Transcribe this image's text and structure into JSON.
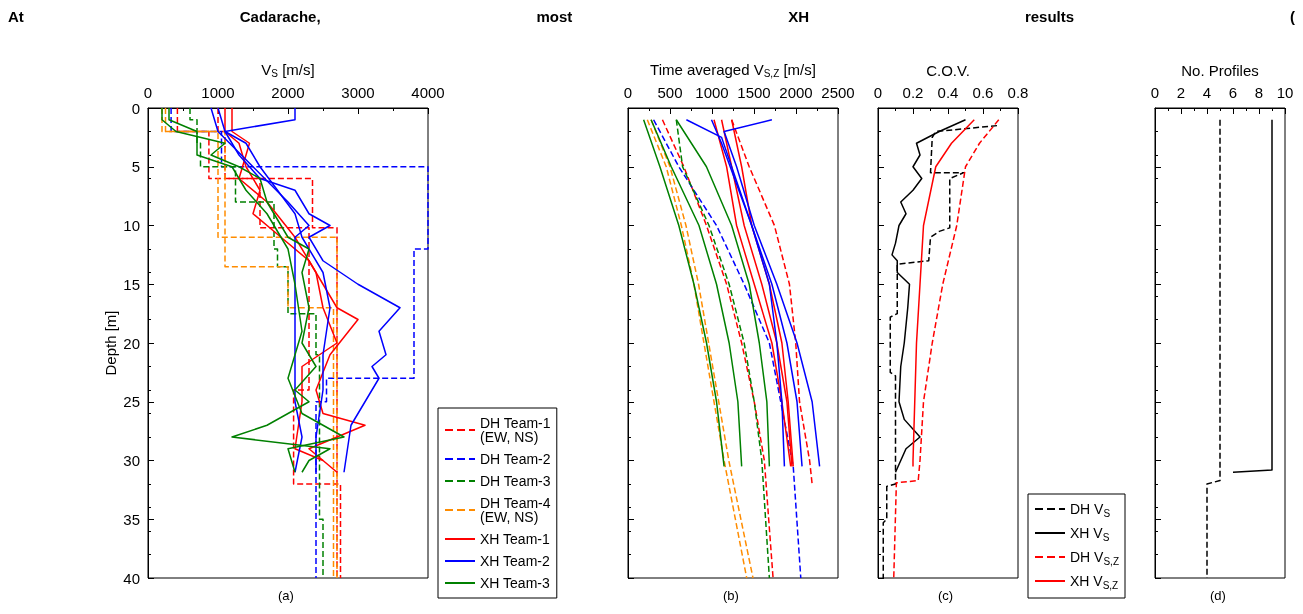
{
  "chart_data": [
    {
      "type": "line",
      "title": "At Cadarache, most XH results (",
      "xlabel": "V$_{S}$ [m/s]",
      "ylabel": "Depth [m]",
      "xlim": [
        0,
        4000
      ],
      "xticks": [
        0,
        1000,
        2000,
        3000,
        4000
      ],
      "ylim": [
        40,
        0
      ],
      "yticks": [
        0,
        5,
        10,
        15,
        20,
        25,
        30,
        35,
        40
      ],
      "legend": "bottom right",
      "annotations": [
        "(a)"
      ],
      "series": [
        {
          "name": "DH Team-1 (EW, NS)",
          "color": "#ff0000",
          "line_style": "dashed",
          "x": [
            420,
            420,
            870,
            870,
            2350,
            2350,
            2700,
            2700,
            2750,
            2750
          ],
          "values": [
            0,
            2,
            2,
            6,
            6,
            10.2,
            10.2,
            32,
            32,
            40
          ]
        },
        {
          "color": "#ff0000",
          "line_style": "dashed",
          "x": [
            1000,
            1000,
            1100,
            1100,
            1600,
            1600,
            2300,
            2300,
            2080,
            2080,
            2700,
            2700
          ],
          "values": [
            0,
            2,
            2,
            6,
            6,
            10.2,
            10.2,
            24,
            24,
            32,
            32,
            40
          ]
        },
        {
          "name": "DH Team-2",
          "color": "#0000ff",
          "line_style": "dashed",
          "x": [
            330,
            330,
            1050,
            1050,
            4000,
            4000,
            3800,
            3800,
            2550,
            2550,
            2400,
            2400
          ],
          "values": [
            0,
            2,
            2,
            5,
            5,
            12,
            12,
            23,
            23,
            25,
            25,
            40
          ]
        },
        {
          "name": "DH Team-3",
          "color": "#008000",
          "line_style": "dashed",
          "x": [
            600,
            600,
            700,
            700,
            750,
            750,
            1250,
            1250,
            1800,
            1800,
            1850,
            1850,
            2000,
            2000,
            2400,
            2400,
            2450,
            2450,
            2500,
            2500
          ],
          "values": [
            0,
            1,
            1,
            3,
            3,
            5,
            5,
            8,
            8,
            12,
            12,
            13.5,
            13.5,
            17.5,
            17.5,
            21,
            21,
            35,
            35,
            40
          ]
        },
        {
          "name": "DH Team-4 (EW, NS)",
          "color": "#ff8c00",
          "line_style": "dashed",
          "x": [
            200,
            200,
            1000,
            1000,
            2700,
            2700
          ],
          "values": [
            0,
            2,
            2,
            11,
            11,
            40
          ]
        },
        {
          "color": "#ff8c00",
          "line_style": "dashed",
          "x": [
            250,
            250,
            1100,
            1100,
            2000,
            2000,
            2650,
            2650
          ],
          "values": [
            0,
            2,
            2,
            13.5,
            13.5,
            17,
            17,
            40
          ]
        },
        {
          "name": "XH Team-1",
          "color": "#ff0000",
          "line_style": "solid",
          "x": [
            1100,
            1100,
            1300,
            1400,
            1600,
            1500,
            1900,
            2300,
            2600,
            2700,
            3000,
            2600,
            2400,
            2500,
            3100,
            2300,
            2700
          ],
          "values": [
            0,
            2,
            3,
            5,
            7,
            9,
            11,
            13,
            16,
            17,
            18,
            21,
            24,
            26,
            27,
            29,
            31
          ]
        },
        {
          "color": "#ff0000",
          "line_style": "solid",
          "x": [
            1200,
            1200,
            1450,
            1300,
            1700,
            2100,
            2400,
            2500,
            2700,
            2200,
            2200,
            2100,
            2500
          ],
          "values": [
            0,
            2,
            3,
            6,
            8,
            11,
            14,
            17,
            20,
            22,
            25,
            29,
            30
          ]
        },
        {
          "name": "XH Team-2",
          "color": "#0000ff",
          "line_style": "solid",
          "x": [
            2100,
            2100,
            1100,
            1300,
            1600,
            2100,
            2300,
            2600,
            2300,
            2500,
            3000,
            3600,
            3300,
            3400,
            3200,
            3300,
            2900,
            2800
          ],
          "values": [
            0,
            1,
            2,
            4,
            6,
            7,
            9,
            10,
            11,
            13,
            15,
            17,
            19,
            21,
            22,
            23,
            27,
            31
          ]
        },
        {
          "color": "#0000ff",
          "line_style": "solid",
          "x": [
            900,
            1000,
            1500,
            2000,
            2300,
            2100,
            2100,
            2100,
            2100,
            2200,
            2100
          ],
          "values": [
            0,
            2,
            5,
            8,
            10,
            11,
            15,
            20,
            25,
            28,
            31
          ]
        },
        {
          "color": "#0000ff",
          "line_style": "solid",
          "x": [
            1000,
            1100,
            1400,
            1600,
            2100,
            2200,
            2500,
            2600,
            2500,
            2500,
            2400,
            2400
          ],
          "values": [
            0,
            2,
            3,
            5,
            9,
            11,
            14,
            17,
            21,
            24,
            28,
            31
          ]
        },
        {
          "name": "XH Team-3",
          "color": "#008000",
          "line_style": "solid",
          "x": [
            200,
            200,
            400,
            1100,
            900,
            1300,
            1600,
            1700,
            2000,
            2300,
            2200,
            2300,
            2200,
            2400,
            2100,
            2300,
            1700,
            1200,
            2600,
            2300,
            2200
          ],
          "values": [
            0,
            1,
            2,
            3,
            4,
            5,
            6,
            8,
            11,
            12,
            14,
            17,
            20,
            22,
            24,
            25,
            27,
            28,
            29,
            30,
            31
          ]
        },
        {
          "color": "#008000",
          "line_style": "solid",
          "x": [
            300,
            300,
            700,
            700,
            1200,
            1400,
            1700,
            2000,
            2100,
            2200,
            2000,
            2200,
            2800,
            2000,
            2100
          ],
          "values": [
            0,
            1,
            2,
            4,
            5,
            7,
            9,
            12,
            15,
            19,
            23,
            26,
            28,
            29,
            31
          ]
        }
      ]
    },
    {
      "type": "line",
      "xlabel": "Time averaged V$_{S,Z}$ [m/s]",
      "xlim": [
        0,
        2500
      ],
      "xticks": [
        0,
        500,
        1000,
        1500,
        2000,
        2500
      ],
      "ylim": [
        40,
        0
      ],
      "yticks": [
        0,
        5,
        10,
        15,
        20,
        25,
        30,
        35,
        40
      ],
      "tick_labels": "x",
      "annotations": [
        "(b)"
      ],
      "series": [
        {
          "color": "#ff0000",
          "line_style": "dashed",
          "x": [
            410,
            665,
            934,
            1174,
            1353,
            1503,
            1623,
            1727
          ],
          "values": [
            1,
            5,
            10,
            15,
            20,
            25,
            30,
            40
          ]
        },
        {
          "color": "#ff0000",
          "line_style": "dashed",
          "x": [
            1234,
            1443,
            1743,
            1922,
            1997,
            2042,
            2162,
            2192
          ],
          "values": [
            1,
            5,
            10,
            15,
            20,
            25,
            30,
            32
          ]
        },
        {
          "color": "#0000ff",
          "line_style": "dashed",
          "x": [
            305,
            605,
            1054,
            1383,
            1683,
            1967,
            2057
          ],
          "values": [
            1,
            5,
            10,
            15,
            20,
            30.5,
            40
          ]
        },
        {
          "color": "#008000",
          "line_style": "dashed",
          "x": [
            575,
            650,
            964,
            1204,
            1383,
            1503,
            1593,
            1683
          ],
          "values": [
            1,
            5,
            10,
            15,
            20,
            25,
            30,
            40
          ]
        },
        {
          "color": "#ff8c00",
          "line_style": "dashed",
          "x": [
            230,
            455,
            635,
            785,
            904,
            1024,
            1144,
            1413
          ],
          "values": [
            1,
            5,
            10,
            15,
            20,
            25,
            30,
            40
          ]
        },
        {
          "color": "#ff8c00",
          "line_style": "dashed",
          "x": [
            275,
            500,
            690,
            840,
            960,
            1080,
            1200,
            1488
          ],
          "values": [
            1,
            5,
            10,
            15,
            20,
            25,
            30,
            40
          ]
        },
        {
          "color": "#ff0000",
          "line_style": "solid",
          "x": [
            1024,
            1174,
            1293,
            1503,
            1713,
            1832,
            1937
          ],
          "values": [
            1,
            5,
            10,
            15,
            20,
            25,
            30.5
          ]
        },
        {
          "color": "#ff0000",
          "line_style": "solid",
          "x": [
            1114,
            1234,
            1383,
            1593,
            1772,
            1892,
            1952
          ],
          "values": [
            1,
            5,
            10,
            15,
            20,
            25,
            30.5
          ]
        },
        {
          "color": "#ff0000",
          "line_style": "solid",
          "x": [
            1234,
            1353,
            1473,
            1683,
            1832,
            1907,
            1967
          ],
          "values": [
            1,
            5,
            10,
            15,
            20,
            25,
            30.5
          ]
        },
        {
          "color": "#0000ff",
          "line_style": "solid",
          "x": [
            695,
            1114,
            1234,
            1473,
            1713,
            1892,
            2012,
            2072
          ],
          "values": [
            1,
            2.5,
            5,
            10,
            15,
            20,
            25,
            30.5
          ]
        },
        {
          "color": "#0000ff",
          "line_style": "solid",
          "x": [
            1713,
            1144,
            1293,
            1503,
            1772,
            2012,
            2192,
            2281
          ],
          "values": [
            1,
            2,
            5,
            10,
            15,
            20,
            25,
            30.5
          ]
        },
        {
          "color": "#0000ff",
          "line_style": "solid",
          "x": [
            994,
            1114,
            1473,
            1683,
            1772,
            1832,
            1862
          ],
          "values": [
            1,
            3,
            10,
            15,
            20,
            25,
            30.5
          ]
        },
        {
          "color": "#008000",
          "line_style": "solid",
          "x": [
            186,
            380,
            605,
            785,
            935,
            1054,
            1144
          ],
          "values": [
            1,
            5,
            10,
            15,
            20,
            25,
            30.5
          ]
        },
        {
          "color": "#008000",
          "line_style": "solid",
          "x": [
            275,
            515,
            845,
            1054,
            1204,
            1308,
            1353
          ],
          "values": [
            1,
            5,
            10,
            15,
            20,
            25,
            30.5
          ]
        },
        {
          "color": "#008000",
          "line_style": "solid",
          "x": [
            575,
            934,
            1234,
            1443,
            1563,
            1653,
            1683
          ],
          "values": [
            1,
            5,
            10,
            15,
            20,
            25,
            30.5
          ]
        }
      ]
    },
    {
      "type": "line",
      "xlabel": "C.O.V.",
      "xlim": [
        0,
        0.8
      ],
      "xticks": [
        0,
        0.2,
        0.4,
        0.6,
        0.8
      ],
      "ylim": [
        40,
        0
      ],
      "yticks": [
        0,
        5,
        10,
        15,
        20,
        25,
        30,
        35,
        40
      ],
      "tick_labels": "x",
      "legend": "bottom right",
      "annotations": [
        "(c)"
      ],
      "series": [
        {
          "name": "DH V$_{S}$",
          "color": "#000000",
          "line_style": "dashed",
          "x": [
            0.68,
            0.33,
            0.31,
            0.3,
            0.49,
            0.41,
            0.41,
            0.35,
            0.3,
            0.29,
            0.11,
            0.11,
            0.07,
            0.07,
            0.1,
            0.1,
            0.05,
            0.05,
            0.03,
            0.03
          ],
          "values": [
            1.5,
            2,
            2.5,
            5.5,
            5.5,
            6,
            10.2,
            10.5,
            11,
            13,
            13.3,
            17.5,
            17.8,
            22.5,
            22.8,
            32,
            32.2,
            35,
            35.3,
            40
          ]
        },
        {
          "name": "XH V$_{S}$",
          "color": "#000000",
          "line_style": "solid",
          "x": [
            0.5,
            0.35,
            0.22,
            0.24,
            0.2,
            0.25,
            0.2,
            0.13,
            0.16,
            0.12,
            0.1,
            0.08,
            0.11,
            0.11,
            0.18,
            0.17,
            0.15,
            0.13,
            0.12,
            0.15,
            0.24,
            0.16,
            0.1
          ],
          "values": [
            1,
            2,
            3,
            4,
            5,
            6,
            7,
            8,
            9,
            10,
            11.5,
            12.5,
            13,
            14,
            15,
            17,
            20,
            22,
            25,
            26.5,
            28,
            29,
            31
          ]
        },
        {
          "name": "DH V$_{S,Z}$",
          "color": "#ff0000",
          "line_style": "dashed",
          "x": [
            0.69,
            0.58,
            0.5,
            0.48,
            0.45,
            0.37,
            0.31,
            0.26,
            0.24,
            0.23,
            0.105,
            0.09
          ],
          "values": [
            1,
            3,
            5,
            7,
            10,
            15,
            20,
            25,
            30,
            31.7,
            31.9,
            40
          ]
        },
        {
          "name": "XH V$_{S,Z}$",
          "color": "#ff0000",
          "line_style": "solid",
          "x": [
            0.55,
            0.42,
            0.33,
            0.26,
            0.24,
            0.22,
            0.21,
            0.2,
            0.2
          ],
          "values": [
            1,
            3,
            5,
            10,
            15,
            20,
            25,
            30,
            30.5
          ]
        }
      ]
    },
    {
      "type": "line",
      "xlabel": "No. Profiles",
      "xlim": [
        0,
        10
      ],
      "xticks": [
        0,
        2,
        4,
        6,
        8,
        10
      ],
      "ylim": [
        40,
        0
      ],
      "yticks": [
        0,
        5,
        10,
        15,
        20,
        25,
        30,
        35,
        40
      ],
      "tick_labels": "x",
      "annotations": [
        "(d)"
      ],
      "series": [
        {
          "color": "#000000",
          "line_style": "dashed",
          "x": [
            5,
            5,
            4,
            4
          ],
          "values": [
            1,
            31.7,
            32,
            40
          ]
        },
        {
          "color": "#000000",
          "line_style": "solid",
          "x": [
            9,
            9,
            6
          ],
          "values": [
            1,
            30.8,
            31
          ]
        }
      ]
    }
  ]
}
